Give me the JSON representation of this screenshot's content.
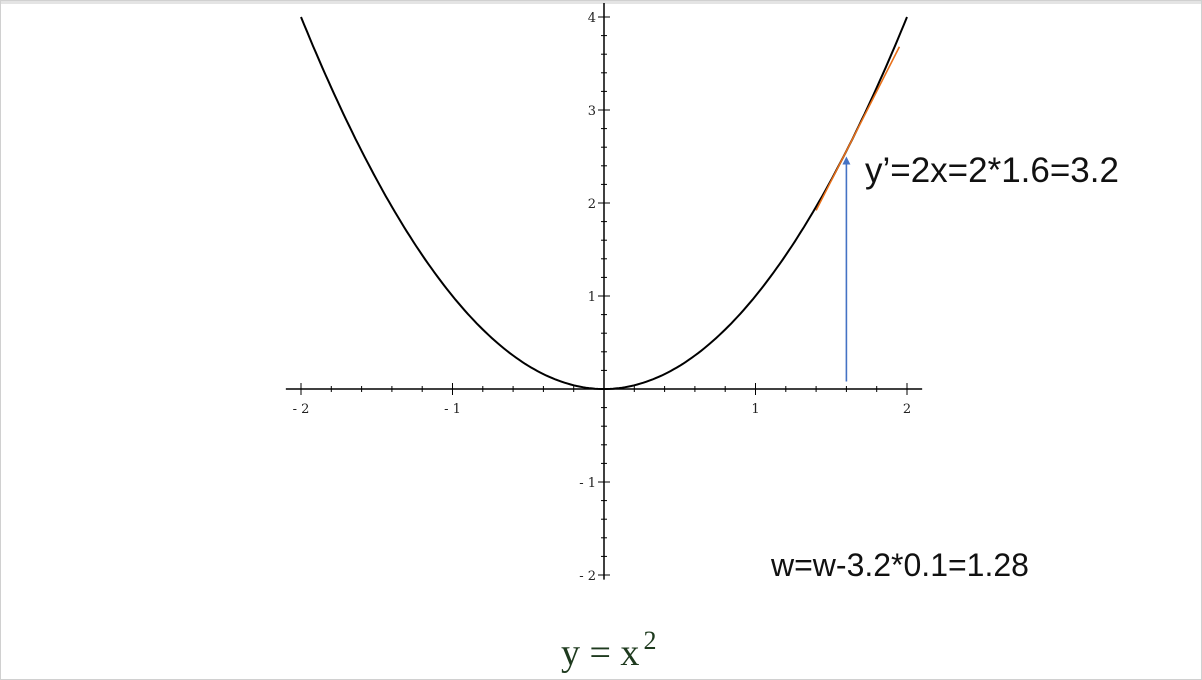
{
  "chart_data": {
    "type": "line",
    "function": "y = x^2",
    "x": [
      -2,
      -1.8,
      -1.6,
      -1.4,
      -1.2,
      -1,
      -0.8,
      -0.6,
      -0.4,
      -0.2,
      0,
      0.2,
      0.4,
      0.6,
      0.8,
      1,
      1.2,
      1.4,
      1.6,
      1.8,
      2
    ],
    "y": [
      4,
      3.24,
      2.56,
      1.96,
      1.44,
      1,
      0.64,
      0.36,
      0.16,
      0.04,
      0,
      0.04,
      0.16,
      0.36,
      0.64,
      1,
      1.44,
      1.96,
      2.56,
      3.24,
      4
    ],
    "xlim": [
      -2.1,
      2.1
    ],
    "ylim": [
      -2.05,
      4.15
    ],
    "x_ticks": [
      -2,
      -1,
      1,
      2
    ],
    "x_tick_labels": [
      "- 2",
      "- 1",
      "1",
      "2"
    ],
    "y_ticks": [
      -2,
      -1,
      1,
      2,
      3,
      4
    ],
    "y_tick_labels": [
      "- 2",
      "- 1",
      "1",
      "2",
      "3",
      "4"
    ],
    "minor_tick_step": 0.2,
    "grid": false,
    "tangent": {
      "x0": 1.6,
      "y0": 2.56,
      "slope": 3.2,
      "from_x": 1.4,
      "to_x": 1.95,
      "color": "#e8701a"
    },
    "arrow": {
      "x": 1.6,
      "from_y": 0.08,
      "to_y": 2.5,
      "color": "#4472c4"
    },
    "curve_color": "#000000",
    "annotations": {
      "derivative": "y’=2x=2*1.6=3.2",
      "update": "w=w-3.2*0.1=1.28"
    },
    "caption": {
      "base": "y = x",
      "exponent": "2"
    }
  }
}
